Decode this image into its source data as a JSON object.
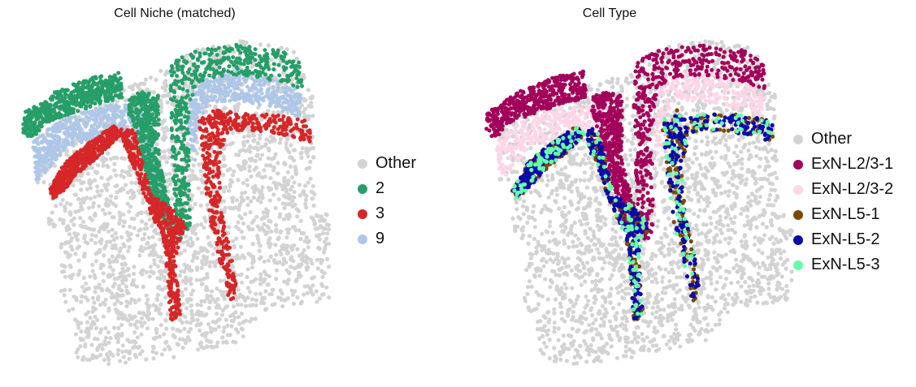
{
  "chart_data": [
    {
      "type": "scatter",
      "title": "Cell Niche (matched)",
      "xlabel": "",
      "ylabel": "",
      "axes_visible": false,
      "grid": false,
      "legend_position": "right",
      "legend": [
        {
          "label": "Other",
          "color": "#d3d3d3"
        },
        {
          "label": "2",
          "color": "#279e68"
        },
        {
          "label": "3",
          "color": "#d62728"
        },
        {
          "label": "9",
          "color": "#aec7e8"
        }
      ]
    },
    {
      "type": "scatter",
      "title": "Cell Type",
      "xlabel": "",
      "ylabel": "",
      "axes_visible": false,
      "grid": false,
      "legend_position": "right",
      "legend": [
        {
          "label": "Other",
          "color": "#d3d3d3"
        },
        {
          "label": "ExN-L2/3-1",
          "color": "#a2005a"
        },
        {
          "label": "ExN-L2/3-2",
          "color": "#ffd6e6"
        },
        {
          "label": "ExN-L5-1",
          "color": "#7a4a05"
        },
        {
          "label": "ExN-L5-2",
          "color": "#0a0aa8"
        },
        {
          "label": "ExN-L5-3",
          "color": "#66ffaa"
        }
      ]
    }
  ]
}
